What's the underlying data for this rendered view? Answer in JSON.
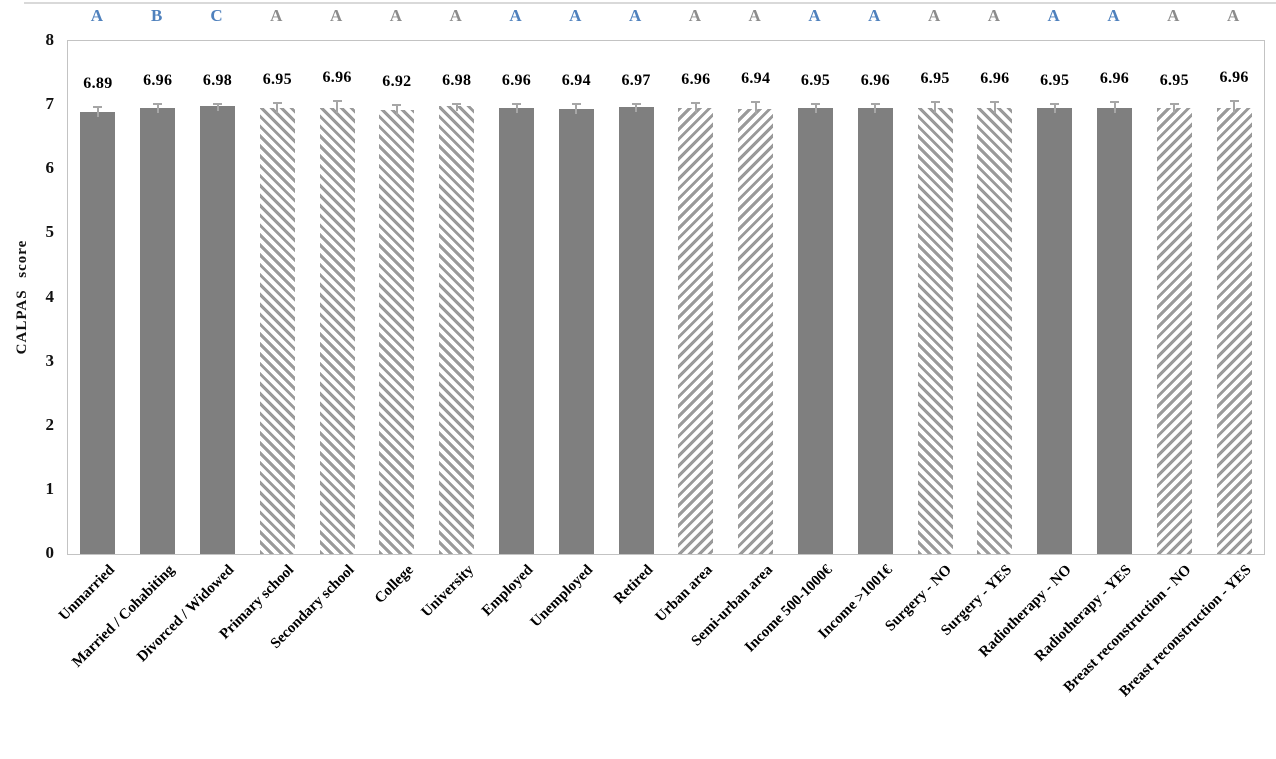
{
  "chart_data": {
    "type": "bar",
    "title": "",
    "xlabel": "",
    "ylabel": "CALPAS score",
    "ylim": [
      0,
      8
    ],
    "yticks": [
      0,
      1,
      2,
      3,
      4,
      5,
      6,
      7,
      8
    ],
    "grid": false,
    "legend": false,
    "categories": [
      "Unmarried",
      "Married / Cohabiting",
      "Divorced / Widowed",
      "Primary school",
      "Secondary school",
      "College",
      "University",
      "Employed",
      "Unemployed",
      "Retired",
      "Urban area",
      "Semi-urban area",
      "Income 500-1000€",
      "Income >1001€",
      "Surgery - NO",
      "Surgery - YES",
      "Radiotherapy - NO",
      "Radiotherapy - YES",
      "Breast reconstruction - NO",
      "Breast reconstruction - YES"
    ],
    "values": [
      6.89,
      6.96,
      6.98,
      6.95,
      6.96,
      6.92,
      6.98,
      6.96,
      6.94,
      6.97,
      6.96,
      6.94,
      6.95,
      6.96,
      6.95,
      6.96,
      6.95,
      6.96,
      6.95,
      6.96
    ],
    "errors": [
      0.1,
      0.08,
      0.06,
      0.1,
      0.12,
      0.1,
      0.06,
      0.08,
      0.09,
      0.06,
      0.09,
      0.12,
      0.08,
      0.08,
      0.11,
      0.1,
      0.09,
      0.1,
      0.09,
      0.12
    ],
    "significance_letters": [
      "A",
      "B",
      "C",
      "A",
      "A",
      "A",
      "A",
      "A",
      "A",
      "A",
      "A",
      "A",
      "A",
      "A",
      "A",
      "A",
      "A",
      "A",
      "A",
      "A"
    ],
    "letter_colors": [
      "blue",
      "blue",
      "blue",
      "gray",
      "gray",
      "gray",
      "gray",
      "blue",
      "blue",
      "blue",
      "gray",
      "gray",
      "blue",
      "blue",
      "gray",
      "gray",
      "blue",
      "blue",
      "gray",
      "gray"
    ],
    "bar_styles": [
      "solid",
      "solid",
      "solid",
      "hatch-down",
      "hatch-down",
      "hatch-down",
      "hatch-down",
      "solid",
      "solid",
      "solid",
      "hatch-up",
      "hatch-up",
      "solid",
      "solid",
      "hatch-down",
      "hatch-down",
      "solid",
      "solid",
      "hatch-up",
      "hatch-up"
    ],
    "colors": {
      "bar_solid": "#7f7f7f",
      "hatch_stripe": "#9a9a9a",
      "letter_blue": "#4f81bd",
      "letter_gray": "#8c8c8c",
      "error_bar": "#a6a6a6",
      "plot_border": "#c3c3c3",
      "top_line": "#d9d9d9",
      "value_label": "#000000"
    }
  }
}
